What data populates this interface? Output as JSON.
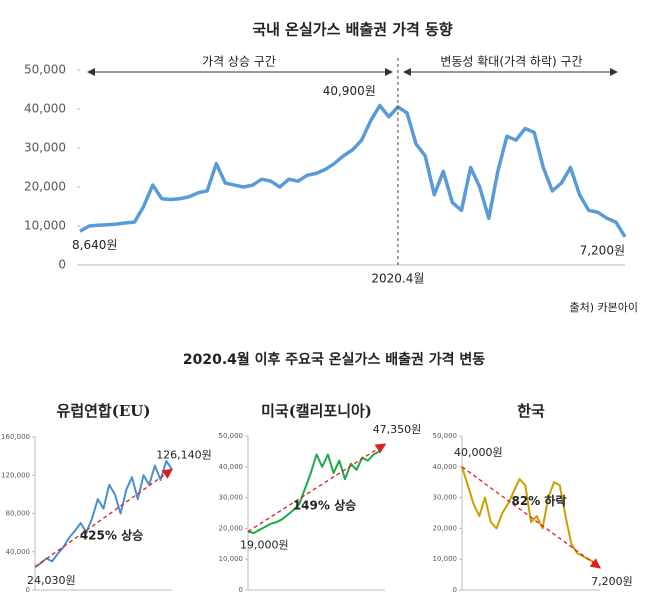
{
  "section_title": "2020.4월 이후 주요국 온실가스 배출권 가격 변동",
  "chart_data": [
    {
      "type": "line",
      "title": "국내 온실가스 배출권 가격 동향",
      "source": "출처) 카본아이",
      "annotations": [
        "가격 상승 구간",
        "변동성 확대(가격 하락) 구간"
      ],
      "categories": [
        null,
        null,
        null,
        null,
        null,
        null,
        null,
        null,
        null,
        null,
        null,
        null,
        null,
        null,
        null,
        null,
        null,
        null,
        null,
        null,
        null,
        null,
        null,
        null,
        null,
        null,
        null,
        null,
        null,
        null,
        null,
        null,
        null,
        null,
        null,
        "2020.4월",
        null,
        null,
        null,
        null,
        null,
        null,
        null,
        null,
        null,
        null,
        null,
        null,
        null,
        null,
        null,
        null,
        null,
        null,
        null,
        null,
        null,
        null,
        null,
        null,
        null
      ],
      "values": [
        8640,
        10000,
        10200,
        10300,
        10500,
        10800,
        11000,
        15000,
        20500,
        17000,
        16800,
        17000,
        17500,
        18500,
        19000,
        26000,
        21000,
        20500,
        20000,
        20500,
        22000,
        21500,
        20000,
        22000,
        21500,
        23000,
        23500,
        24500,
        26000,
        28000,
        29500,
        32000,
        37000,
        40900,
        38000,
        40500,
        39000,
        31000,
        28000,
        18000,
        24000,
        16000,
        14000,
        25000,
        20000,
        12000,
        24000,
        33000,
        32000,
        35000,
        34000,
        25000,
        19000,
        21000,
        25000,
        18000,
        14000,
        13500,
        12000,
        11000,
        7200
      ],
      "value_labels": [
        "8,640원",
        null,
        null,
        null,
        null,
        null,
        null,
        null,
        null,
        null,
        null,
        null,
        null,
        null,
        null,
        null,
        null,
        null,
        null,
        null,
        null,
        null,
        null,
        null,
        null,
        null,
        null,
        null,
        null,
        null,
        null,
        null,
        null,
        "40,900원",
        null,
        null,
        null,
        null,
        null,
        null,
        null,
        null,
        null,
        null,
        null,
        null,
        null,
        null,
        null,
        null,
        null,
        null,
        null,
        null,
        null,
        null,
        null,
        null,
        null,
        null,
        "7,200원"
      ],
      "color": "#5b9bd5",
      "grid": false,
      "ylim": [
        0,
        50000
      ],
      "yticks": [
        0,
        {
          "value": 10000,
          "label": "10,000"
        },
        {
          "value": 20000,
          "label": "20,000"
        },
        {
          "value": 30000,
          "label": "30,000"
        },
        {
          "value": 40000,
          "label": "40,000"
        },
        {
          "value": 50000,
          "label": "50,000"
        }
      ]
    },
    {
      "type": "line",
      "title": "유럽연합(EU)",
      "annotations": [
        "425% 상승"
      ],
      "values": [
        24030,
        28000,
        33000,
        30000,
        38000,
        45000,
        55000,
        62000,
        70000,
        60000,
        75000,
        95000,
        85000,
        110000,
        100000,
        80000,
        105000,
        118000,
        95000,
        120000,
        110000,
        130000,
        115000,
        135000,
        126140
      ],
      "value_labels": [
        "24,030원",
        null,
        null,
        null,
        null,
        null,
        null,
        null,
        null,
        null,
        null,
        null,
        null,
        null,
        null,
        null,
        null,
        null,
        null,
        null,
        null,
        null,
        null,
        null,
        "126,140원"
      ],
      "color": "#4a8fd0",
      "trend_color": "#e02020",
      "grid": false,
      "ylim": [
        0,
        160000
      ],
      "yticks": [
        0,
        {
          "value": 40000,
          "label": "40,000"
        },
        {
          "value": 80000,
          "label": "80,000"
        },
        {
          "value": 120000,
          "label": "120,000"
        },
        {
          "value": 160000,
          "label": "160,000"
        }
      ]
    },
    {
      "type": "line",
      "title": "미국(캘리포니아)",
      "annotations": [
        "149% 상승"
      ],
      "values": [
        19000,
        18500,
        19500,
        20500,
        21500,
        22000,
        23000,
        24500,
        26000,
        28000,
        33000,
        38000,
        44000,
        40000,
        44000,
        38000,
        42000,
        36000,
        41000,
        39000,
        43000,
        42000,
        44000,
        45000,
        47350
      ],
      "value_labels": [
        "19,000원",
        null,
        null,
        null,
        null,
        null,
        null,
        null,
        null,
        null,
        null,
        null,
        null,
        null,
        null,
        null,
        null,
        null,
        null,
        null,
        null,
        null,
        null,
        null,
        "47,350원"
      ],
      "color": "#1aaa4a",
      "trend_color": "#e02020",
      "grid": false,
      "ylim": [
        0,
        50000
      ],
      "yticks": [
        0,
        {
          "value": 10000,
          "label": "10,000"
        },
        {
          "value": 20000,
          "label": "20,000"
        },
        {
          "value": 30000,
          "label": "30,000"
        },
        {
          "value": 40000,
          "label": "40,000"
        },
        {
          "value": 50000,
          "label": "50,000"
        }
      ]
    },
    {
      "type": "line",
      "title": "한국",
      "annotations": [
        "82% 하락"
      ],
      "values": [
        40000,
        34000,
        28000,
        24000,
        30000,
        22000,
        20000,
        25000,
        28000,
        32000,
        36000,
        34000,
        22000,
        24000,
        20000,
        30000,
        35000,
        34000,
        24000,
        15000,
        12000,
        11000,
        10000,
        9000,
        7200
      ],
      "value_labels": [
        "40,000원",
        null,
        null,
        null,
        null,
        null,
        null,
        null,
        null,
        null,
        null,
        null,
        null,
        null,
        null,
        null,
        null,
        null,
        null,
        null,
        null,
        null,
        null,
        null,
        "7,200원"
      ],
      "color": "#c9a100",
      "trend_color": "#e02020",
      "grid": false,
      "ylim": [
        0,
        50000
      ],
      "yticks": [
        0,
        {
          "value": 10000,
          "label": "10,000"
        },
        {
          "value": 20000,
          "label": "20,000"
        },
        {
          "value": 30000,
          "label": "30,000"
        },
        {
          "value": 40000,
          "label": "40,000"
        },
        {
          "value": 50000,
          "label": "50,000"
        }
      ]
    }
  ]
}
